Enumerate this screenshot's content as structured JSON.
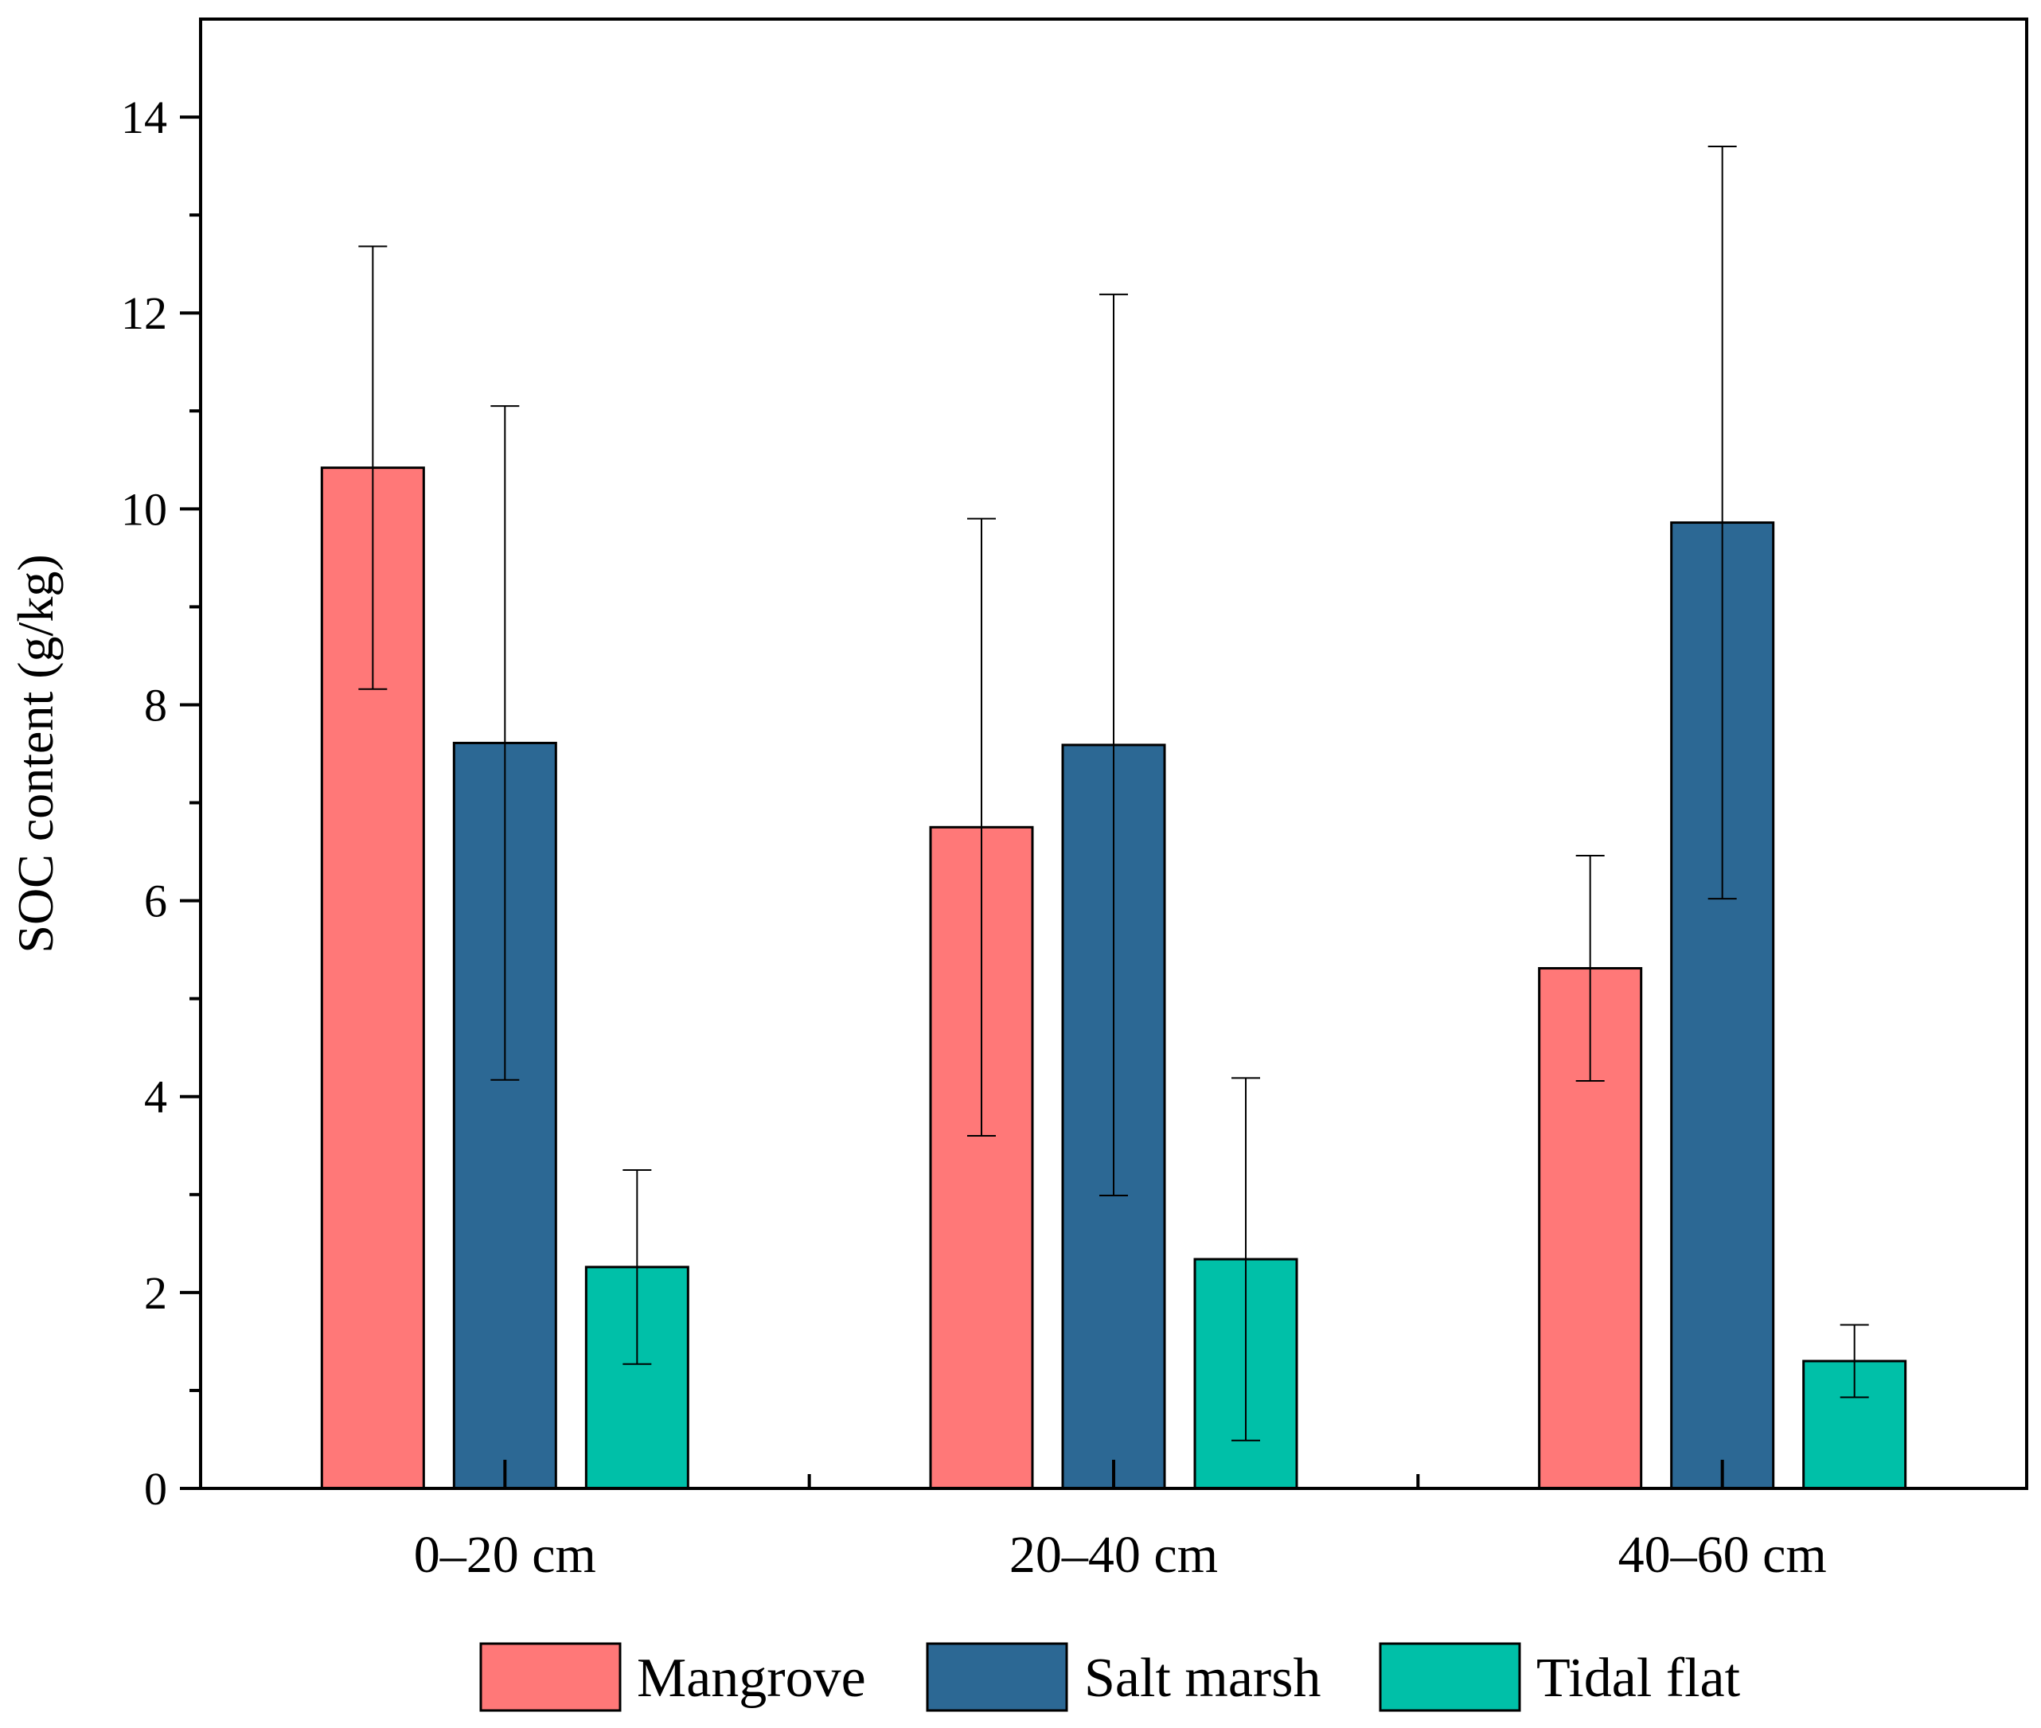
{
  "chart_data": {
    "type": "bar",
    "title": "",
    "xlabel": "",
    "ylabel": "SOC content (g/kg)",
    "ylim": [
      0,
      15
    ],
    "yticks": [
      0,
      2,
      4,
      6,
      8,
      10,
      12,
      14
    ],
    "categories": [
      "0–20 cm",
      "20–40 cm",
      "40–60 cm"
    ],
    "series": [
      {
        "name": "Mangrove",
        "color": "#ff7878",
        "values": [
          10.42,
          6.75,
          5.31
        ],
        "errors": [
          2.26,
          3.15,
          1.15
        ]
      },
      {
        "name": "Salt marsh",
        "color": "#2c6894",
        "values": [
          7.61,
          7.59,
          9.86
        ],
        "errors": [
          3.44,
          4.6,
          3.84
        ]
      },
      {
        "name": "Tidal flat",
        "color": "#00c0a8",
        "values": [
          2.26,
          2.34,
          1.3
        ],
        "errors": [
          0.99,
          1.85,
          0.37
        ]
      }
    ],
    "legend_position": "bottom",
    "grid": false
  }
}
